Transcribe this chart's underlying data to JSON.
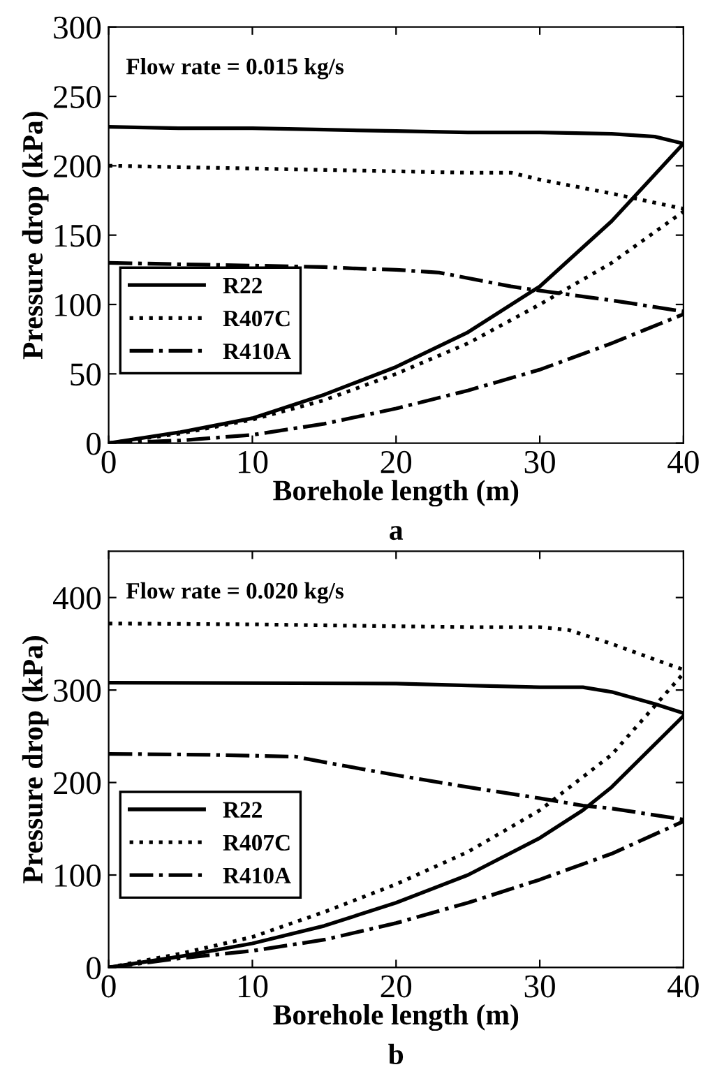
{
  "chart_data": [
    {
      "type": "line",
      "xlabel": "Borehole length (m)",
      "ylabel": "Pressure drop (kPa)",
      "annotations": [
        "Flow rate = 0.015 kg/s",
        "a"
      ],
      "xlim": [
        0,
        40
      ],
      "ylim": [
        0,
        300
      ],
      "xticks": [
        0,
        10,
        20,
        30,
        40
      ],
      "yticks": [
        0,
        50,
        100,
        150,
        200,
        250,
        300
      ],
      "legend": "left",
      "grid": false,
      "series": [
        {
          "name": "R22",
          "color": "#000000",
          "line_style": "solid",
          "x": [
            0,
            5,
            10,
            15,
            20,
            25,
            30,
            35,
            38,
            40
          ],
          "values": [
            228,
            227,
            227,
            226,
            225,
            224,
            224,
            223,
            221,
            216
          ]
        },
        {
          "color": "#000000",
          "line_style": "solid",
          "x": [
            0,
            5,
            10,
            15,
            20,
            25,
            30,
            35,
            40
          ],
          "values": [
            0,
            8,
            18,
            35,
            55,
            80,
            113,
            160,
            216
          ]
        },
        {
          "name": "R407C",
          "color": "#000000",
          "line_style": "dotted",
          "x": [
            0,
            5,
            10,
            15,
            20,
            25,
            28,
            30,
            35,
            40
          ],
          "values": [
            200,
            199,
            198,
            197,
            196,
            195,
            195,
            190,
            180,
            169
          ]
        },
        {
          "color": "#000000",
          "line_style": "dotted",
          "x": [
            0,
            5,
            10,
            15,
            20,
            25,
            30,
            35,
            40
          ],
          "values": [
            0,
            7,
            17,
            31,
            50,
            72,
            100,
            130,
            167
          ]
        },
        {
          "name": "R410A",
          "color": "#000000",
          "line_style": "dashdot",
          "x": [
            0,
            5,
            10,
            15,
            17,
            20,
            23,
            28,
            30,
            35,
            40
          ],
          "values": [
            130,
            129,
            128,
            127,
            126,
            125,
            123,
            113,
            110,
            103,
            95
          ]
        },
        {
          "color": "#000000",
          "line_style": "dashdot",
          "x": [
            0,
            5,
            10,
            15,
            20,
            25,
            30,
            35,
            40
          ],
          "values": [
            0,
            2,
            6,
            14,
            25,
            38,
            53,
            72,
            93
          ]
        }
      ]
    },
    {
      "type": "line",
      "xlabel": "Borehole length (m)",
      "ylabel": "Pressure drop (kPa)",
      "annotations": [
        "Flow rate = 0.020 kg/s",
        "b"
      ],
      "xlim": [
        0,
        40
      ],
      "ylim": [
        0,
        450
      ],
      "xticks": [
        0,
        10,
        20,
        30,
        40
      ],
      "yticks": [
        0,
        100,
        200,
        300,
        400
      ],
      "legend": "left",
      "grid": false,
      "series": [
        {
          "name": "R22",
          "color": "#000000",
          "line_style": "solid",
          "x": [
            0,
            20,
            25,
            30,
            33,
            35,
            38,
            40
          ],
          "values": [
            308,
            307,
            305,
            303,
            303,
            298,
            285,
            275
          ]
        },
        {
          "color": "#000000",
          "line_style": "solid",
          "x": [
            0,
            5,
            10,
            15,
            20,
            25,
            30,
            33,
            35,
            40
          ],
          "values": [
            0,
            12,
            26,
            45,
            70,
            100,
            140,
            170,
            195,
            272
          ]
        },
        {
          "name": "R407C",
          "color": "#000000",
          "line_style": "dotted",
          "x": [
            0,
            10,
            20,
            25,
            30,
            32,
            35,
            38,
            40
          ],
          "values": [
            372,
            371,
            369,
            368,
            368,
            365,
            350,
            333,
            322
          ]
        },
        {
          "color": "#000000",
          "line_style": "dotted",
          "x": [
            0,
            5,
            10,
            15,
            20,
            25,
            30,
            35,
            40
          ],
          "values": [
            0,
            15,
            33,
            60,
            90,
            125,
            170,
            230,
            318
          ]
        },
        {
          "name": "R410A",
          "color": "#000000",
          "line_style": "dashdot",
          "x": [
            0,
            7,
            13,
            15,
            20,
            25,
            30,
            33,
            35,
            40
          ],
          "values": [
            231,
            230,
            228,
            222,
            208,
            195,
            183,
            175,
            172,
            160
          ]
        },
        {
          "color": "#000000",
          "line_style": "dashdot",
          "x": [
            0,
            5,
            10,
            15,
            20,
            25,
            30,
            35,
            40
          ],
          "values": [
            0,
            10,
            18,
            30,
            48,
            70,
            95,
            123,
            158
          ]
        }
      ]
    }
  ]
}
